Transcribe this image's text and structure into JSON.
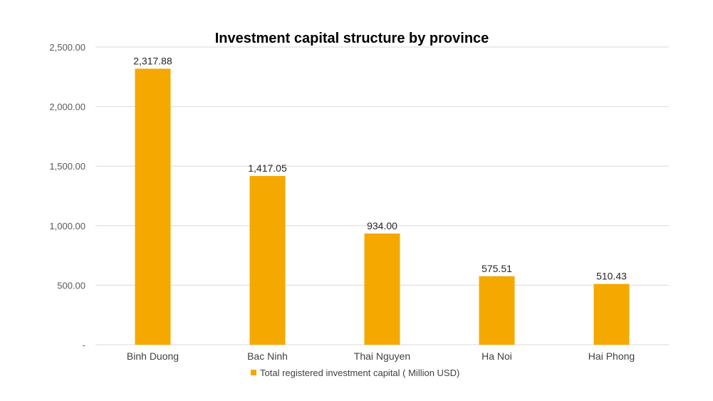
{
  "chart_data": {
    "type": "bar",
    "title": "Investment capital structure by province",
    "categories": [
      "Binh Duong",
      "Bac Ninh",
      "Thai Nguyen",
      "Ha Noi",
      "Hai Phong"
    ],
    "series": [
      {
        "name": "Total registered investment capital ( Million USD)",
        "values": [
          2317.88,
          1417.05,
          934.0,
          575.51,
          510.43
        ],
        "color": "#F5A800"
      }
    ],
    "data_labels": [
      "2,317.88",
      "1,417.05",
      "934.00",
      "575.51",
      "510.43"
    ],
    "y_ticks": [
      0,
      500,
      1000,
      1500,
      2000,
      2500
    ],
    "y_tick_labels": [
      "-",
      "500.00",
      "1,000.00",
      "1,500.00",
      "2,000.00",
      "2,500.00"
    ],
    "ylim": [
      0,
      2500
    ],
    "grid": true,
    "legend_position": "bottom"
  }
}
